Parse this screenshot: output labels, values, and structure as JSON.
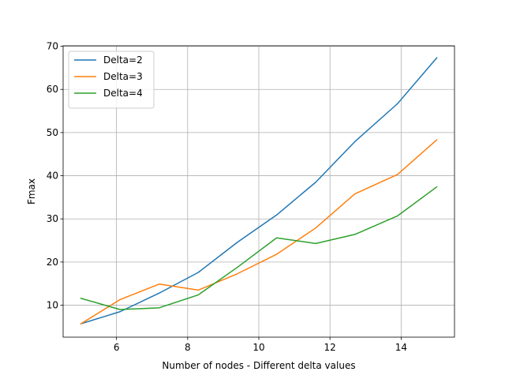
{
  "chart_data": {
    "type": "line",
    "title": "",
    "xlabel": "Number of nodes - Different delta values",
    "ylabel": "Fmax",
    "xlim": [
      4.5,
      15.5
    ],
    "ylim": [
      2.6,
      70.1
    ],
    "xticks": [
      6,
      8,
      10,
      12,
      14
    ],
    "yticks": [
      10,
      20,
      30,
      40,
      50,
      60,
      70
    ],
    "grid": true,
    "legend_position": "top-left",
    "x": [
      5.0,
      6.1,
      7.2,
      8.3,
      9.4,
      10.5,
      11.6,
      12.7,
      13.9,
      15.0
    ],
    "series": [
      {
        "name": "Delta=2",
        "color": "#1f77b4",
        "values": [
          5.7,
          8.5,
          12.8,
          17.6,
          24.6,
          30.9,
          38.5,
          47.9,
          56.7,
          67.3
        ]
      },
      {
        "name": "Delta=3",
        "color": "#ff7f0e",
        "values": [
          5.7,
          11.3,
          14.9,
          13.5,
          17.3,
          21.8,
          27.9,
          35.8,
          40.3,
          48.3
        ]
      },
      {
        "name": "Delta=4",
        "color": "#2ca02c",
        "values": [
          11.6,
          9.0,
          9.4,
          12.4,
          18.8,
          25.6,
          24.3,
          26.4,
          30.7,
          37.4
        ]
      }
    ]
  }
}
